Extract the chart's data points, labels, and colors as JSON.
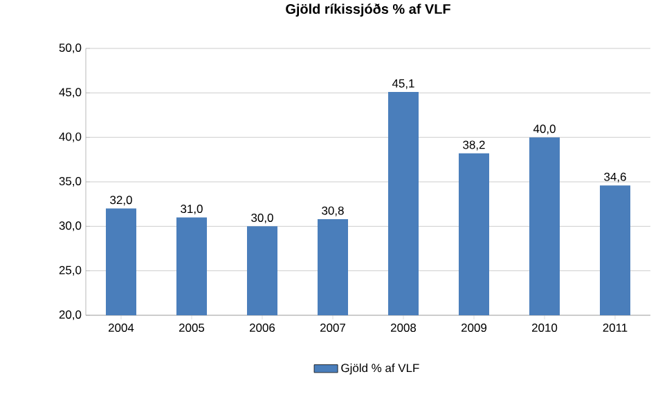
{
  "chart_data": {
    "type": "bar",
    "title": "**Gjöld ríkissjóðs % af VLF**",
    "categories": [
      "2004",
      "2005",
      "2006",
      "2007",
      "2008",
      "2009",
      "2010",
      "2011"
    ],
    "series": [
      {
        "name": "Gjöld % af VLF",
        "color": "#4a7ebb",
        "values": [
          32.0,
          31.0,
          30.0,
          30.8,
          45.1,
          38.2,
          40.0,
          34.6
        ],
        "value_labels": [
          "32,0",
          "31,0",
          "30,0",
          "30,8",
          "45,1",
          "38,2",
          "40,0",
          "34,6"
        ]
      }
    ],
    "ylim": [
      20,
      50
    ],
    "yticks": [
      {
        "value": 20,
        "label": "20,0"
      },
      {
        "value": 25,
        "label": "25,0"
      },
      {
        "value": 30,
        "label": "30,0"
      },
      {
        "value": 35,
        "label": "35,0"
      },
      {
        "value": 40,
        "label": "40,0"
      },
      {
        "value": 45,
        "label": "45,0"
      },
      {
        "value": 50,
        "label": "50,0"
      }
    ],
    "grid": "y",
    "legend": "bottom"
  }
}
